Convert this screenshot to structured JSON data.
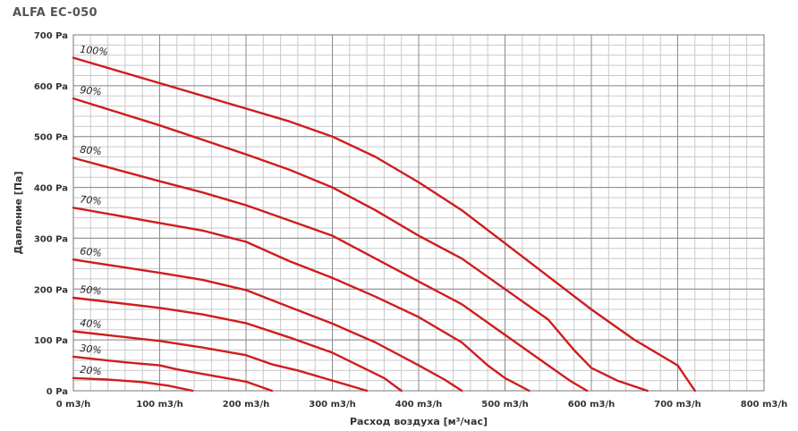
{
  "chart_data": {
    "type": "line",
    "title": "ALFA EC-050",
    "xlabel": "Расход воздуха [м³/час]",
    "ylabel": "Давление [Па]",
    "xlim": [
      0,
      800
    ],
    "ylim": [
      0,
      700
    ],
    "grid": true,
    "line_color": "#d01c1c",
    "x_ticks": [
      {
        "value": 0,
        "label": "0 m3/h"
      },
      {
        "value": 100,
        "label": "100 m3/h"
      },
      {
        "value": 200,
        "label": "200 m3/h"
      },
      {
        "value": 300,
        "label": "300 m3/h"
      },
      {
        "value": 400,
        "label": "400 m3/h"
      },
      {
        "value": 500,
        "label": "500 m3/h"
      },
      {
        "value": 600,
        "label": "600 m3/h"
      },
      {
        "value": 700,
        "label": "700 m3/h"
      },
      {
        "value": 800,
        "label": "800 m3/h"
      }
    ],
    "y_ticks": [
      {
        "value": 0,
        "label": "0 Pa"
      },
      {
        "value": 100,
        "label": "100 Pa"
      },
      {
        "value": 200,
        "label": "200 Pa"
      },
      {
        "value": 300,
        "label": "300 Pa"
      },
      {
        "value": 400,
        "label": "400 Pa"
      },
      {
        "value": 500,
        "label": "500 Pa"
      },
      {
        "value": 600,
        "label": "600 Pa"
      },
      {
        "value": 700,
        "label": "700 Pa"
      }
    ],
    "series": [
      {
        "name": "100%",
        "points": [
          [
            0,
            655
          ],
          [
            100,
            605
          ],
          [
            200,
            555
          ],
          [
            250,
            530
          ],
          [
            300,
            500
          ],
          [
            350,
            460
          ],
          [
            400,
            410
          ],
          [
            450,
            355
          ],
          [
            500,
            290
          ],
          [
            550,
            225
          ],
          [
            600,
            160
          ],
          [
            650,
            100
          ],
          [
            700,
            50
          ],
          [
            720,
            0
          ]
        ]
      },
      {
        "name": "90%",
        "points": [
          [
            0,
            575
          ],
          [
            100,
            522
          ],
          [
            200,
            465
          ],
          [
            250,
            435
          ],
          [
            300,
            400
          ],
          [
            350,
            355
          ],
          [
            400,
            305
          ],
          [
            450,
            260
          ],
          [
            500,
            200
          ],
          [
            550,
            140
          ],
          [
            580,
            80
          ],
          [
            600,
            45
          ],
          [
            630,
            20
          ],
          [
            665,
            0
          ]
        ]
      },
      {
        "name": "80%",
        "points": [
          [
            0,
            458
          ],
          [
            100,
            412
          ],
          [
            150,
            390
          ],
          [
            200,
            365
          ],
          [
            250,
            335
          ],
          [
            300,
            305
          ],
          [
            350,
            260
          ],
          [
            400,
            215
          ],
          [
            450,
            170
          ],
          [
            500,
            110
          ],
          [
            550,
            50
          ],
          [
            575,
            20
          ],
          [
            595,
            0
          ]
        ]
      },
      {
        "name": "70%",
        "points": [
          [
            0,
            360
          ],
          [
            100,
            330
          ],
          [
            150,
            315
          ],
          [
            200,
            293
          ],
          [
            250,
            255
          ],
          [
            300,
            222
          ],
          [
            350,
            185
          ],
          [
            400,
            145
          ],
          [
            450,
            95
          ],
          [
            480,
            50
          ],
          [
            500,
            25
          ],
          [
            528,
            0
          ]
        ]
      },
      {
        "name": "60%",
        "points": [
          [
            0,
            258
          ],
          [
            100,
            232
          ],
          [
            150,
            218
          ],
          [
            200,
            198
          ],
          [
            250,
            165
          ],
          [
            300,
            132
          ],
          [
            350,
            95
          ],
          [
            400,
            50
          ],
          [
            430,
            22
          ],
          [
            450,
            0
          ]
        ]
      },
      {
        "name": "50%",
        "points": [
          [
            0,
            183
          ],
          [
            100,
            163
          ],
          [
            150,
            150
          ],
          [
            200,
            133
          ],
          [
            250,
            105
          ],
          [
            300,
            75
          ],
          [
            330,
            50
          ],
          [
            360,
            25
          ],
          [
            380,
            0
          ]
        ]
      },
      {
        "name": "40%",
        "points": [
          [
            0,
            117
          ],
          [
            100,
            98
          ],
          [
            150,
            85
          ],
          [
            200,
            70
          ],
          [
            230,
            52
          ],
          [
            260,
            40
          ],
          [
            300,
            20
          ],
          [
            340,
            0
          ]
        ]
      },
      {
        "name": "30%",
        "points": [
          [
            0,
            67
          ],
          [
            60,
            56
          ],
          [
            100,
            50
          ],
          [
            120,
            42
          ],
          [
            160,
            30
          ],
          [
            200,
            18
          ],
          [
            230,
            0
          ]
        ]
      },
      {
        "name": "20%",
        "points": [
          [
            0,
            25
          ],
          [
            40,
            22
          ],
          [
            80,
            17
          ],
          [
            110,
            10
          ],
          [
            138,
            0
          ]
        ]
      }
    ]
  }
}
